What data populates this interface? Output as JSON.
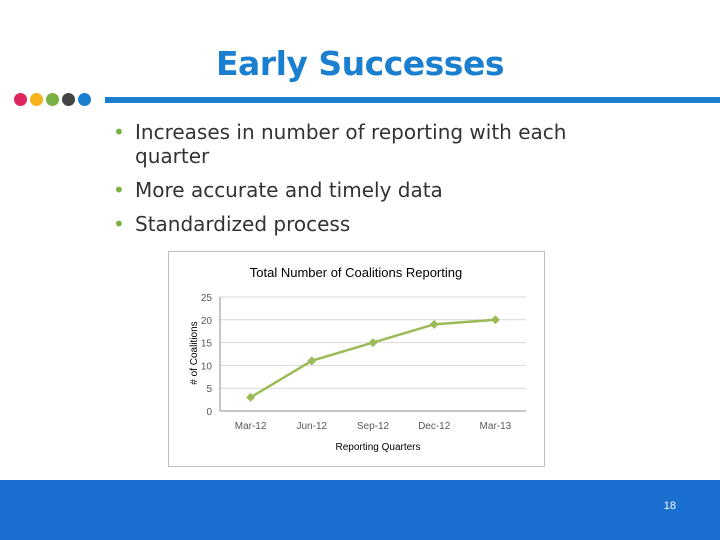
{
  "slide": {
    "title": "Early Successes",
    "page_number": "18",
    "accent_color": "#1a7fcf",
    "footer_color": "#1a6fd0",
    "logo_dot_colors": [
      "#e0245e",
      "#f5b21a",
      "#7ab040",
      "#444444",
      "#1a7fcf"
    ]
  },
  "bullets": [
    "Increases in number of reporting with each quarter",
    "More accurate and timely data",
    "Standardized process"
  ],
  "chart_data": {
    "type": "line",
    "title": "Total Number of Coalitions Reporting",
    "xlabel": "Reporting Quarters",
    "ylabel": "# of Coalitions",
    "categories": [
      "Mar-12",
      "Jun-12",
      "Sep-12",
      "Dec-12",
      "Mar-13"
    ],
    "values": [
      3,
      11,
      15,
      19,
      20
    ],
    "ylim": [
      0,
      25
    ],
    "yticks": [
      0,
      5,
      10,
      15,
      20,
      25
    ],
    "grid": true,
    "color": "#9bbb59"
  }
}
